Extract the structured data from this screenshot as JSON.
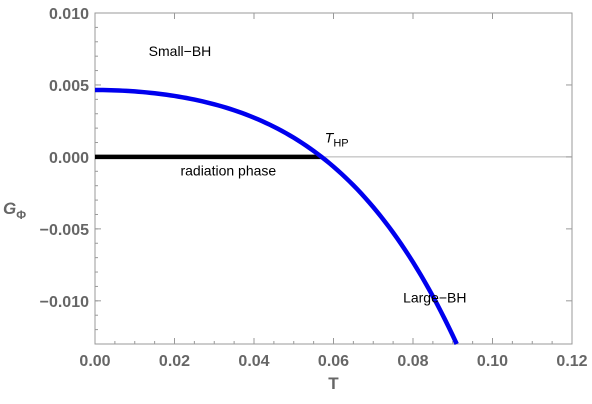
{
  "chart_data": {
    "type": "line",
    "xlabel": "T",
    "ylabel": {
      "main": "G",
      "sub": "Φ"
    },
    "xlim": [
      0.0,
      0.12
    ],
    "ylim": [
      -0.013,
      0.01
    ],
    "x_ticks": [
      0.0,
      0.02,
      0.04,
      0.06,
      0.08,
      0.1,
      0.12
    ],
    "x_tick_labels": [
      "0.00",
      "0.02",
      "0.04",
      "0.06",
      "0.08",
      "0.10",
      "0.12"
    ],
    "y_ticks": [
      0.01,
      0.005,
      0.0,
      -0.005,
      -0.01
    ],
    "y_tick_labels": [
      "0.010",
      "0.005",
      "0.000",
      "−0.005",
      "−0.010"
    ],
    "grid": false,
    "zero_line": true,
    "series": [
      {
        "color": "#0000ee",
        "x": [
          0.0,
          0.005,
          0.01,
          0.015,
          0.02,
          0.025,
          0.03,
          0.035,
          0.04,
          0.045,
          0.05,
          0.055,
          0.057,
          0.06,
          0.065,
          0.07,
          0.075,
          0.08,
          0.085,
          0.091
        ],
        "y": [
          0.00465,
          0.00463,
          0.00456,
          0.00441,
          0.00416,
          0.00381,
          0.00336,
          0.00281,
          0.00215,
          0.00138,
          0.00052,
          -0.0004,
          -2e-05,
          -0.00134,
          -0.00275,
          -0.00445,
          -0.00632,
          -0.00837,
          -0.01061,
          -0.013
        ]
      },
      {
        "color": "#000000",
        "x": [
          0.0,
          0.057
        ],
        "y": [
          0.0,
          0.0
        ]
      }
    ],
    "annotations": [
      {
        "text": "Small−BH",
        "x": 0.0135,
        "y": 0.007
      },
      {
        "text": "T",
        "sub": "HP",
        "x": 0.0578,
        "y": 0.001,
        "italic": true
      },
      {
        "text": "radiation phase",
        "x": 0.0215,
        "y": -0.0013
      },
      {
        "text": "Large−BH",
        "x": 0.0775,
        "y": -0.0101
      }
    ]
  }
}
